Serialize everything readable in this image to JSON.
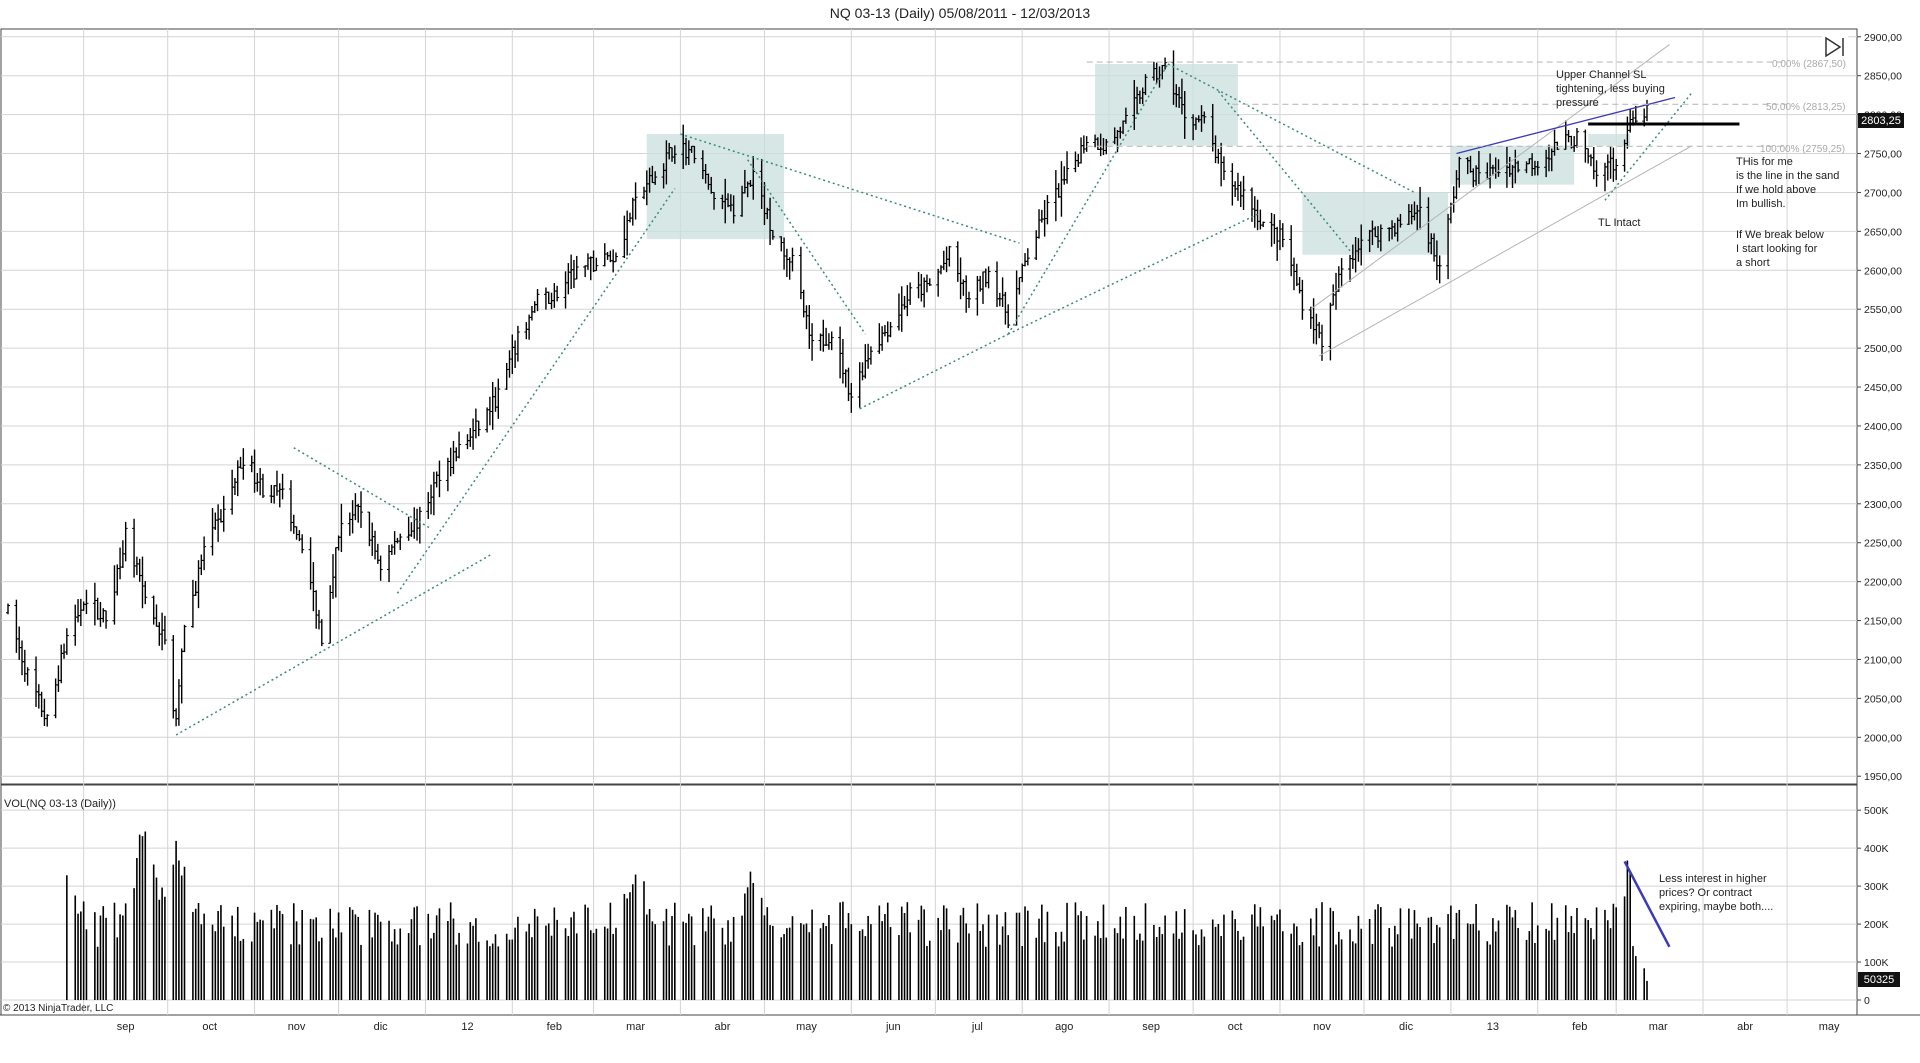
{
  "window": {
    "title": "NQ 03-13 (Daily)  05/08/2011 - 12/03/2013"
  },
  "copyright": "© 2013 NinjaTrader, LLC",
  "colors": {
    "bars": "#000000",
    "grid": "#d4d4d4",
    "trendline": "#3a8a82",
    "zone": "#c9dfdc",
    "channel": "#b4b4b4",
    "blue_line": "#3b3bb8",
    "fib": "#bdbdbd"
  },
  "price_panel": {
    "y_ticks": [
      "2900,00",
      "2850,00",
      "2800,00",
      "2750,00",
      "2700,00",
      "2650,00",
      "2600,00",
      "2550,00",
      "2500,00",
      "2450,00",
      "2400,00",
      "2350,00",
      "2300,00",
      "2250,00",
      "2200,00",
      "2150,00",
      "2100,00",
      "2050,00",
      "2000,00",
      "1950,00"
    ],
    "last_price": "2803,25",
    "fib_labels": [
      "0,00% (2867,50)",
      "50,00% (2813,25)",
      "100,00% (2759,25)"
    ],
    "annotations": {
      "channel_note": [
        "Upper Channel SL",
        "tightening, less buying",
        "pressure"
      ],
      "sand_note": [
        "THis for me",
        "is the line in the sand",
        "If we hold above",
        "Im bullish.",
        "",
        "If We break below",
        "I start looking for",
        "a short"
      ],
      "tl_note": "TL Intact"
    }
  },
  "volume_panel": {
    "title": "VOL(NQ 03-13 (Daily))",
    "y_ticks": [
      "500K",
      "400K",
      "300K",
      "200K",
      "100K",
      "0"
    ],
    "last_volume": "50325",
    "annotation": [
      "Less interest in higher",
      "prices? Or contract",
      "expiring, maybe both...."
    ]
  },
  "x_axis": {
    "labels": [
      "sep",
      "oct",
      "nov",
      "dic",
      "12",
      "feb",
      "mar",
      "abr",
      "may",
      "jun",
      "jul",
      "ago",
      "sep",
      "oct",
      "nov",
      "dic",
      "13",
      "feb",
      "mar",
      "abr",
      "may"
    ]
  },
  "chart_data": {
    "type": "bar",
    "title": "NQ 03-13 (Daily)  05/08/2011 - 12/03/2013",
    "price_range": [
      1940,
      2910
    ],
    "volume_range": [
      0,
      540000
    ],
    "weekly_price_path": [
      [
        "2011-08-05",
        2160
      ],
      [
        "2011-08-12",
        2080
      ],
      [
        "2011-08-19",
        2020
      ],
      [
        "2011-08-26",
        2130
      ],
      [
        "2011-09-02",
        2180
      ],
      [
        "2011-09-09",
        2150
      ],
      [
        "2011-09-16",
        2260
      ],
      [
        "2011-09-23",
        2180
      ],
      [
        "2011-09-30",
        2120
      ],
      [
        "2011-10-04",
        2020
      ],
      [
        "2011-10-07",
        2140
      ],
      [
        "2011-10-14",
        2240
      ],
      [
        "2011-10-21",
        2290
      ],
      [
        "2011-10-28",
        2360
      ],
      [
        "2011-11-04",
        2320
      ],
      [
        "2011-11-11",
        2310
      ],
      [
        "2011-11-18",
        2250
      ],
      [
        "2011-11-25",
        2130
      ],
      [
        "2011-12-02",
        2280
      ],
      [
        "2011-12-09",
        2290
      ],
      [
        "2011-12-16",
        2220
      ],
      [
        "2011-12-23",
        2260
      ],
      [
        "2011-12-30",
        2280
      ],
      [
        "2012-01-06",
        2340
      ],
      [
        "2012-01-13",
        2370
      ],
      [
        "2012-01-20",
        2400
      ],
      [
        "2012-01-27",
        2440
      ],
      [
        "2012-02-03",
        2510
      ],
      [
        "2012-02-10",
        2560
      ],
      [
        "2012-02-17",
        2570
      ],
      [
        "2012-02-24",
        2600
      ],
      [
        "2012-03-02",
        2610
      ],
      [
        "2012-03-09",
        2620
      ],
      [
        "2012-03-16",
        2690
      ],
      [
        "2012-03-23",
        2720
      ],
      [
        "2012-03-30",
        2760
      ],
      [
        "2012-04-06",
        2750
      ],
      [
        "2012-04-13",
        2690
      ],
      [
        "2012-04-20",
        2680
      ],
      [
        "2012-04-27",
        2720
      ],
      [
        "2012-05-04",
        2650
      ],
      [
        "2012-05-11",
        2610
      ],
      [
        "2012-05-18",
        2500
      ],
      [
        "2012-05-25",
        2520
      ],
      [
        "2012-06-01",
        2440
      ],
      [
        "2012-06-08",
        2500
      ],
      [
        "2012-06-15",
        2530
      ],
      [
        "2012-06-22",
        2570
      ],
      [
        "2012-06-29",
        2580
      ],
      [
        "2012-07-06",
        2620
      ],
      [
        "2012-07-13",
        2560
      ],
      [
        "2012-07-20",
        2600
      ],
      [
        "2012-07-27",
        2540
      ],
      [
        "2012-08-03",
        2620
      ],
      [
        "2012-08-10",
        2680
      ],
      [
        "2012-08-17",
        2720
      ],
      [
        "2012-08-24",
        2770
      ],
      [
        "2012-08-31",
        2760
      ],
      [
        "2012-09-07",
        2790
      ],
      [
        "2012-09-14",
        2840
      ],
      [
        "2012-09-21",
        2860
      ],
      [
        "2012-09-28",
        2800
      ],
      [
        "2012-10-05",
        2790
      ],
      [
        "2012-10-12",
        2720
      ],
      [
        "2012-10-19",
        2700
      ],
      [
        "2012-10-26",
        2660
      ],
      [
        "2012-11-02",
        2640
      ],
      [
        "2012-11-09",
        2560
      ],
      [
        "2012-11-16",
        2510
      ],
      [
        "2012-11-23",
        2600
      ],
      [
        "2012-11-30",
        2640
      ],
      [
        "2012-12-07",
        2650
      ],
      [
        "2012-12-14",
        2660
      ],
      [
        "2012-12-21",
        2680
      ],
      [
        "2012-12-28",
        2600
      ],
      [
        "2013-01-04",
        2740
      ],
      [
        "2013-01-11",
        2720
      ],
      [
        "2013-01-18",
        2730
      ],
      [
        "2013-01-25",
        2735
      ],
      [
        "2013-02-01",
        2740
      ],
      [
        "2013-02-08",
        2760
      ],
      [
        "2013-02-15",
        2770
      ],
      [
        "2013-02-22",
        2720
      ],
      [
        "2013-03-01",
        2740
      ],
      [
        "2013-03-08",
        2800
      ],
      [
        "2013-03-12",
        2803.25
      ]
    ],
    "last_price": 2803.25,
    "last_volume": 50325,
    "volume_peaks": [
      [
        "2011-08-26",
        380000
      ],
      [
        "2011-09-23",
        510000
      ],
      [
        "2011-10-04",
        490000
      ],
      [
        "2012-04-27",
        370000
      ],
      [
        "2012-03-16",
        420000
      ],
      [
        "2013-03-05",
        370000
      ]
    ]
  }
}
